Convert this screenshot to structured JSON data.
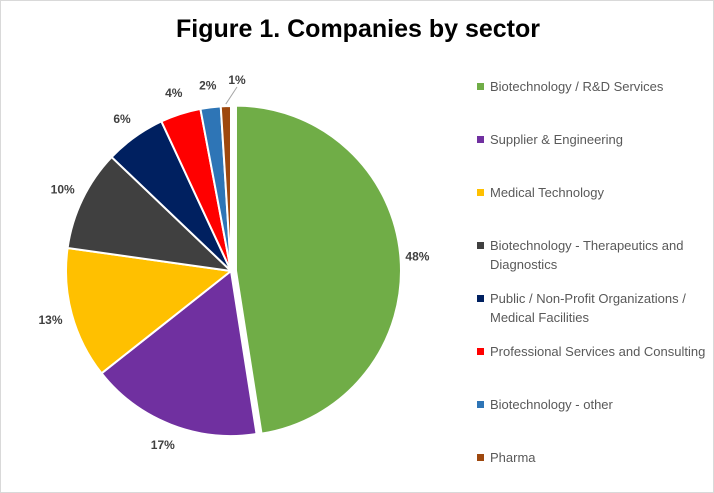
{
  "chart_data": {
    "type": "pie",
    "title": "Figure 1. Companies by sector",
    "legend_position": "right",
    "slices": [
      {
        "label": "Biotechnology / R&D Services",
        "value": 48,
        "display": "48%",
        "color": "#70ad47"
      },
      {
        "label": "Supplier & Engineering",
        "value": 17,
        "display": "17%",
        "color": "#7030a0"
      },
      {
        "label": "Medical Technology",
        "value": 13,
        "display": "13%",
        "color": "#ffc000"
      },
      {
        "label": "Biotechnology - Therapeutics and Diagnostics",
        "value": 10,
        "display": "10%",
        "color": "#404040"
      },
      {
        "label": "Public  / Non-Profit Organizations / Medical Facilities",
        "value": 6,
        "display": "6%",
        "color": "#002060"
      },
      {
        "label": "Professional Services and Consulting",
        "value": 4,
        "display": "4%",
        "color": "#ff0000"
      },
      {
        "label": "Biotechnology - other",
        "value": 2,
        "display": "2%",
        "color": "#2e75b6"
      },
      {
        "label": "Pharma",
        "value": 1,
        "display": "1%",
        "color": "#9e480e"
      }
    ]
  }
}
